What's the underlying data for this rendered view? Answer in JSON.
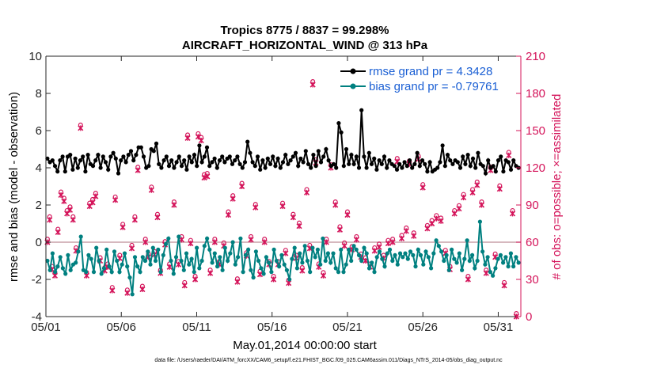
{
  "chart_data": {
    "type": "line",
    "title_line1": "Tropics 8775 / 8837 = 99.298%",
    "title_line2": "AIRCRAFT_HORIZONTAL_WIND @ 313 hPa",
    "xlabel": "May.01,2014 00:00:00 start",
    "ylabel_left": "rmse and bias (model - observation)",
    "ylabel_right": "# of obs: o=possible; ×=assimilated",
    "xlim": [
      0,
      31.5
    ],
    "ylim_left": [
      -4,
      10
    ],
    "ylim_right": [
      0,
      210
    ],
    "x_ticks": [
      {
        "value": 0,
        "label": "05/01"
      },
      {
        "value": 5,
        "label": "05/06"
      },
      {
        "value": 10,
        "label": "05/11"
      },
      {
        "value": 15,
        "label": "05/16"
      },
      {
        "value": 20,
        "label": "05/21"
      },
      {
        "value": 25,
        "label": "05/26"
      },
      {
        "value": 30,
        "label": "05/31"
      }
    ],
    "y_ticks_left": [
      {
        "value": -4,
        "label": "-4"
      },
      {
        "value": -2,
        "label": "-2"
      },
      {
        "value": 0,
        "label": "0"
      },
      {
        "value": 2,
        "label": "2"
      },
      {
        "value": 4,
        "label": "4"
      },
      {
        "value": 6,
        "label": "6"
      },
      {
        "value": 8,
        "label": "8"
      },
      {
        "value": 10,
        "label": "10"
      }
    ],
    "y_ticks_right": [
      {
        "value": 0,
        "label": "0"
      },
      {
        "value": 30,
        "label": "30"
      },
      {
        "value": 60,
        "label": "60"
      },
      {
        "value": 90,
        "label": "90"
      },
      {
        "value": 120,
        "label": "120"
      },
      {
        "value": 150,
        "label": "150"
      },
      {
        "value": 180,
        "label": "180"
      },
      {
        "value": 210,
        "label": "210"
      }
    ],
    "legend": [
      "rmse grand pr = 4.3428",
      "bias grand pr = -0.79761"
    ],
    "footer": "data file: /Users/raeder/DAI/ATM_forcXX/CAM6_setup/f.e21.FHIST_BGC.f09_025.CAM6assim.011/Diags_NTrS_2014-05/obs_diag_output.nc",
    "colors": {
      "rmse": "#000000",
      "bias": "#008080",
      "obs": "#d4145a",
      "zero_line": "#c8a0a8"
    },
    "rmse": [
      4.5,
      4.3,
      4.4,
      4.1,
      3.8,
      4.4,
      4.6,
      3.8,
      4.6,
      4.7,
      3.9,
      4.5,
      4.0,
      4.4,
      4.6,
      3.8,
      4.7,
      4.2,
      4.1,
      4.4,
      4.7,
      4.0,
      4.6,
      4.3,
      3.9,
      4.6,
      4.8,
      4.5,
      3.7,
      4.4,
      4.6,
      4.3,
      4.7,
      4.9,
      4.4,
      4.7,
      5.1,
      5.1,
      4.6,
      4.0,
      4.1,
      5.0,
      4.9,
      5.3,
      4.2,
      4.0,
      4.4,
      4.6,
      4.1,
      4.4,
      4.0,
      4.3,
      4.6,
      4.1,
      4.4,
      3.9,
      4.6,
      4.3,
      4.7,
      4.1,
      5.2,
      4.3,
      4.6,
      5.1,
      4.1,
      4.3,
      4.5,
      4.0,
      4.4,
      4.6,
      4.3,
      4.5,
      4.6,
      4.2,
      4.4,
      4.6,
      4.2,
      4.0,
      4.3,
      5.4,
      4.8,
      4.3,
      4.1,
      4.6,
      3.9,
      4.4,
      4.0,
      4.5,
      4.2,
      4.6,
      4.1,
      4.5,
      4.0,
      4.3,
      4.7,
      4.2,
      4.4,
      4.6,
      4.8,
      4.1,
      4.5,
      4.3,
      4.9,
      4.2,
      4.0,
      4.7,
      4.1,
      4.9,
      4.3,
      4.6,
      5.0,
      4.4,
      4.1,
      4.2,
      4.0,
      6.4,
      5.9,
      4.1,
      5.0,
      4.2,
      4.7,
      4.2,
      4.6,
      4.0,
      7.1,
      4.6,
      4.0,
      4.8,
      4.2,
      4.5,
      3.9,
      4.4,
      4.2,
      4.6,
      4.0,
      4.4,
      4.2,
      4.1,
      3.9,
      4.2,
      4.0,
      4.3,
      4.1,
      4.4,
      4.0,
      4.2,
      4.8,
      4.1,
      4.4,
      4.2,
      3.8,
      4.3,
      3.8,
      3.9,
      4.0,
      4.3,
      5.2,
      4.1,
      4.7,
      4.4,
      4.2,
      4.4,
      4.3,
      4.0,
      4.6,
      4.2,
      4.7,
      4.1,
      4.5,
      4.0,
      4.8,
      4.2,
      4.1,
      3.7,
      4.4,
      4.0,
      4.1,
      3.8,
      4.4,
      4.6,
      3.8,
      4.4,
      4.3,
      3.9,
      4.4,
      4.1,
      4.0
    ],
    "bias": [
      -1.0,
      -1.5,
      -0.6,
      -1.6,
      -1.3,
      -0.8,
      -1.4,
      -1.7,
      -0.7,
      -1.5,
      -1.2,
      -1.1,
      -0.5,
      0.3,
      -1.5,
      -1.6,
      -0.7,
      -0.9,
      -1.6,
      -0.3,
      -1.0,
      -1.7,
      -1.4,
      -0.4,
      -1.3,
      -1.6,
      -0.5,
      -1.0,
      -1.6,
      -1.2,
      -0.6,
      -1.3,
      -1.9,
      -2.8,
      -0.8,
      -1.3,
      -1.6,
      -0.8,
      -1.0,
      -0.5,
      -1.2,
      -0.3,
      -1.0,
      -0.4,
      -1.6,
      -0.7,
      -0.1,
      0.2,
      -1.0,
      -1.7,
      -0.8,
      0.3,
      -1.0,
      -1.5,
      -0.6,
      -1.2,
      -0.9,
      -1.6,
      -0.3,
      -1.4,
      -1.0,
      -0.2,
      0.2,
      -0.4,
      -1.1,
      -0.6,
      -1.3,
      -0.8,
      -1.5,
      -0.3,
      -1.0,
      -0.6,
      0.0,
      -1.2,
      -0.8,
      0.2,
      -1.6,
      -0.7,
      -0.4,
      -1.5,
      -1.9,
      -0.5,
      -1.0,
      -1.4,
      -1.7,
      -0.8,
      -1.1,
      -1.6,
      -0.4,
      -1.0,
      -1.3,
      -0.7,
      -1.2,
      -1.5,
      -2.0,
      -0.9,
      -0.3,
      -1.4,
      -0.6,
      -1.1,
      -0.2,
      -1.0,
      -1.6,
      -0.3,
      -0.8,
      -0.4,
      -1.2,
      0.2,
      -1.0,
      -0.6,
      -1.1,
      -0.6,
      -1.4,
      -1.6,
      -0.4,
      -1.6,
      -1.2,
      -0.4,
      -1.0,
      -0.2,
      -0.4,
      -0.7,
      -1.0,
      -0.3,
      -0.6,
      -1.4,
      -1.1,
      -1.6,
      -0.8,
      -0.5,
      -0.9,
      -1.3,
      -0.6,
      -0.4,
      -1.0,
      -0.7,
      -1.2,
      -0.6,
      -0.8,
      -0.6,
      -0.9,
      -0.5,
      -0.7,
      -1.3,
      -0.4,
      -0.7,
      -1.2,
      -0.5,
      -0.8,
      -1.4,
      -0.6,
      0.1,
      -0.2,
      -0.5,
      -1.0,
      -0.7,
      -1.5,
      -0.4,
      -0.9,
      -1.1,
      -0.6,
      -1.5,
      -0.9,
      0.1,
      -1.0,
      -0.7,
      -1.4,
      -1.0,
      1.1,
      -0.5,
      -1.2,
      -0.8,
      -1.6,
      -1.8,
      -1.4,
      -0.9,
      -0.7,
      -1.1,
      -0.8,
      -1.3,
      -0.6,
      -1.3,
      -0.8,
      -1.1
    ],
    "obs_possible_series": [
      {
        "x": 0.1,
        "v": 60
      },
      {
        "x": 0.25,
        "v": 78
      },
      {
        "x": 0.4,
        "v": 38
      },
      {
        "x": 0.6,
        "v": 33
      },
      {
        "x": 0.8,
        "v": 68
      },
      {
        "x": 1.0,
        "v": 98
      },
      {
        "x": 1.2,
        "v": 93
      },
      {
        "x": 1.4,
        "v": 83
      },
      {
        "x": 1.6,
        "v": 86
      },
      {
        "x": 1.8,
        "v": 78
      },
      {
        "x": 2.0,
        "v": 53
      },
      {
        "x": 2.3,
        "v": 152
      },
      {
        "x": 2.7,
        "v": 33
      },
      {
        "x": 2.9,
        "v": 89
      },
      {
        "x": 3.1,
        "v": 92
      },
      {
        "x": 3.3,
        "v": 97
      },
      {
        "x": 3.6,
        "v": 45
      },
      {
        "x": 3.9,
        "v": 37
      },
      {
        "x": 4.1,
        "v": 40
      },
      {
        "x": 4.4,
        "v": 21
      },
      {
        "x": 4.6,
        "v": 94
      },
      {
        "x": 4.9,
        "v": 47
      },
      {
        "x": 5.1,
        "v": 72
      },
      {
        "x": 5.4,
        "v": 19
      },
      {
        "x": 5.7,
        "v": 55
      },
      {
        "x": 5.9,
        "v": 78
      },
      {
        "x": 6.1,
        "v": 118
      },
      {
        "x": 6.4,
        "v": 22
      },
      {
        "x": 6.6,
        "v": 60
      },
      {
        "x": 6.8,
        "v": 48
      },
      {
        "x": 7.0,
        "v": 102
      },
      {
        "x": 7.2,
        "v": 50
      },
      {
        "x": 7.4,
        "v": 80
      },
      {
        "x": 7.6,
        "v": 35
      },
      {
        "x": 7.9,
        "v": 58
      },
      {
        "x": 8.2,
        "v": 40
      },
      {
        "x": 8.5,
        "v": 90
      },
      {
        "x": 8.8,
        "v": 42
      },
      {
        "x": 9.0,
        "v": 62
      },
      {
        "x": 9.2,
        "v": 25
      },
      {
        "x": 9.4,
        "v": 144
      },
      {
        "x": 9.6,
        "v": 59
      },
      {
        "x": 9.9,
        "v": 30
      },
      {
        "x": 10.1,
        "v": 145
      },
      {
        "x": 10.3,
        "v": 142
      },
      {
        "x": 10.5,
        "v": 112
      },
      {
        "x": 10.7,
        "v": 113
      },
      {
        "x": 10.9,
        "v": 35
      },
      {
        "x": 11.2,
        "v": 60
      },
      {
        "x": 11.5,
        "v": 42
      },
      {
        "x": 11.8,
        "v": 57
      },
      {
        "x": 12.1,
        "v": 82
      },
      {
        "x": 12.4,
        "v": 95
      },
      {
        "x": 12.7,
        "v": 28
      },
      {
        "x": 13.0,
        "v": 105
      },
      {
        "x": 13.3,
        "v": 49
      },
      {
        "x": 13.6,
        "v": 62
      },
      {
        "x": 13.9,
        "v": 88
      },
      {
        "x": 14.2,
        "v": 34
      },
      {
        "x": 14.5,
        "v": 60
      },
      {
        "x": 14.8,
        "v": 42
      },
      {
        "x": 15.1,
        "v": 30
      },
      {
        "x": 15.4,
        "v": 42
      },
      {
        "x": 15.7,
        "v": 89
      },
      {
        "x": 15.9,
        "v": 51
      },
      {
        "x": 16.1,
        "v": 27
      },
      {
        "x": 16.4,
        "v": 80
      },
      {
        "x": 16.6,
        "v": 47
      },
      {
        "x": 16.8,
        "v": 73
      },
      {
        "x": 17.0,
        "v": 37
      },
      {
        "x": 17.3,
        "v": 100
      },
      {
        "x": 17.5,
        "v": 55
      },
      {
        "x": 17.7,
        "v": 187
      },
      {
        "x": 17.9,
        "v": 124
      },
      {
        "x": 18.1,
        "v": 40
      },
      {
        "x": 18.4,
        "v": 33
      },
      {
        "x": 18.6,
        "v": 60
      },
      {
        "x": 18.9,
        "v": 120
      },
      {
        "x": 19.2,
        "v": 90
      },
      {
        "x": 19.5,
        "v": 70
      },
      {
        "x": 19.8,
        "v": 57
      },
      {
        "x": 20.0,
        "v": 82
      },
      {
        "x": 20.3,
        "v": 54
      },
      {
        "x": 20.6,
        "v": 62
      },
      {
        "x": 20.9,
        "v": 48
      },
      {
        "x": 21.2,
        "v": 45
      },
      {
        "x": 21.5,
        "v": 40
      },
      {
        "x": 21.8,
        "v": 53
      },
      {
        "x": 22.1,
        "v": 56
      },
      {
        "x": 22.4,
        "v": 47
      },
      {
        "x": 22.7,
        "v": 59
      },
      {
        "x": 23.0,
        "v": 60
      },
      {
        "x": 23.3,
        "v": 125
      },
      {
        "x": 23.6,
        "v": 63
      },
      {
        "x": 23.9,
        "v": 69
      },
      {
        "x": 24.1,
        "v": 123
      },
      {
        "x": 24.4,
        "v": 65
      },
      {
        "x": 24.7,
        "v": 127
      },
      {
        "x": 25.0,
        "v": 104
      },
      {
        "x": 25.3,
        "v": 71
      },
      {
        "x": 25.6,
        "v": 75
      },
      {
        "x": 25.9,
        "v": 79
      },
      {
        "x": 26.2,
        "v": 77
      },
      {
        "x": 26.5,
        "v": 51
      },
      {
        "x": 26.8,
        "v": 38
      },
      {
        "x": 27.1,
        "v": 83
      },
      {
        "x": 27.4,
        "v": 87
      },
      {
        "x": 27.7,
        "v": 96
      },
      {
        "x": 28.0,
        "v": 30
      },
      {
        "x": 28.3,
        "v": 100
      },
      {
        "x": 28.6,
        "v": 106
      },
      {
        "x": 28.9,
        "v": 90
      },
      {
        "x": 29.2,
        "v": 35
      },
      {
        "x": 29.5,
        "v": 118
      },
      {
        "x": 29.8,
        "v": 48
      },
      {
        "x": 30.1,
        "v": 103
      },
      {
        "x": 30.4,
        "v": 25
      },
      {
        "x": 30.7,
        "v": 130
      },
      {
        "x": 30.95,
        "v": 83
      },
      {
        "x": 31.2,
        "v": 0
      }
    ]
  }
}
